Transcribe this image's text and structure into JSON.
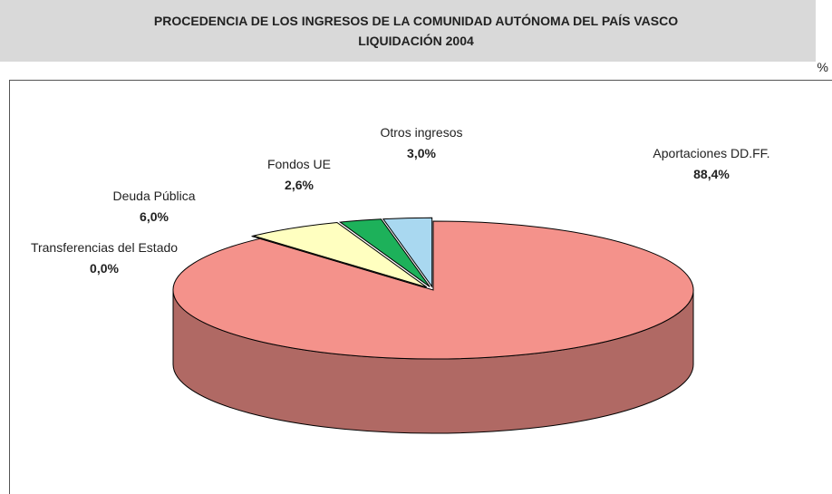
{
  "chart_data": {
    "type": "pie3d",
    "title": "PROCEDENCIA DE LOS INGRESOS DE LA COMUNIDAD AUTÓNOMA DEL PAÍS VASCO",
    "subtitle": "LIQUIDACIÓN 2004",
    "unit": "%",
    "categories": [
      "Aportaciones DD.FF.",
      "Transferencias del Estado",
      "Deuda Pública",
      "Fondos UE",
      "Otros ingresos"
    ],
    "values": [
      88.4,
      0.0,
      6.0,
      2.6,
      3.0
    ],
    "value_labels": [
      "88,4%",
      "0,0%",
      "6,0%",
      "2,6%",
      "3,0%"
    ],
    "colors": [
      "#f4928b",
      "#c0282a",
      "#ffffc0",
      "#1db15a",
      "#a9d8f0"
    ]
  }
}
